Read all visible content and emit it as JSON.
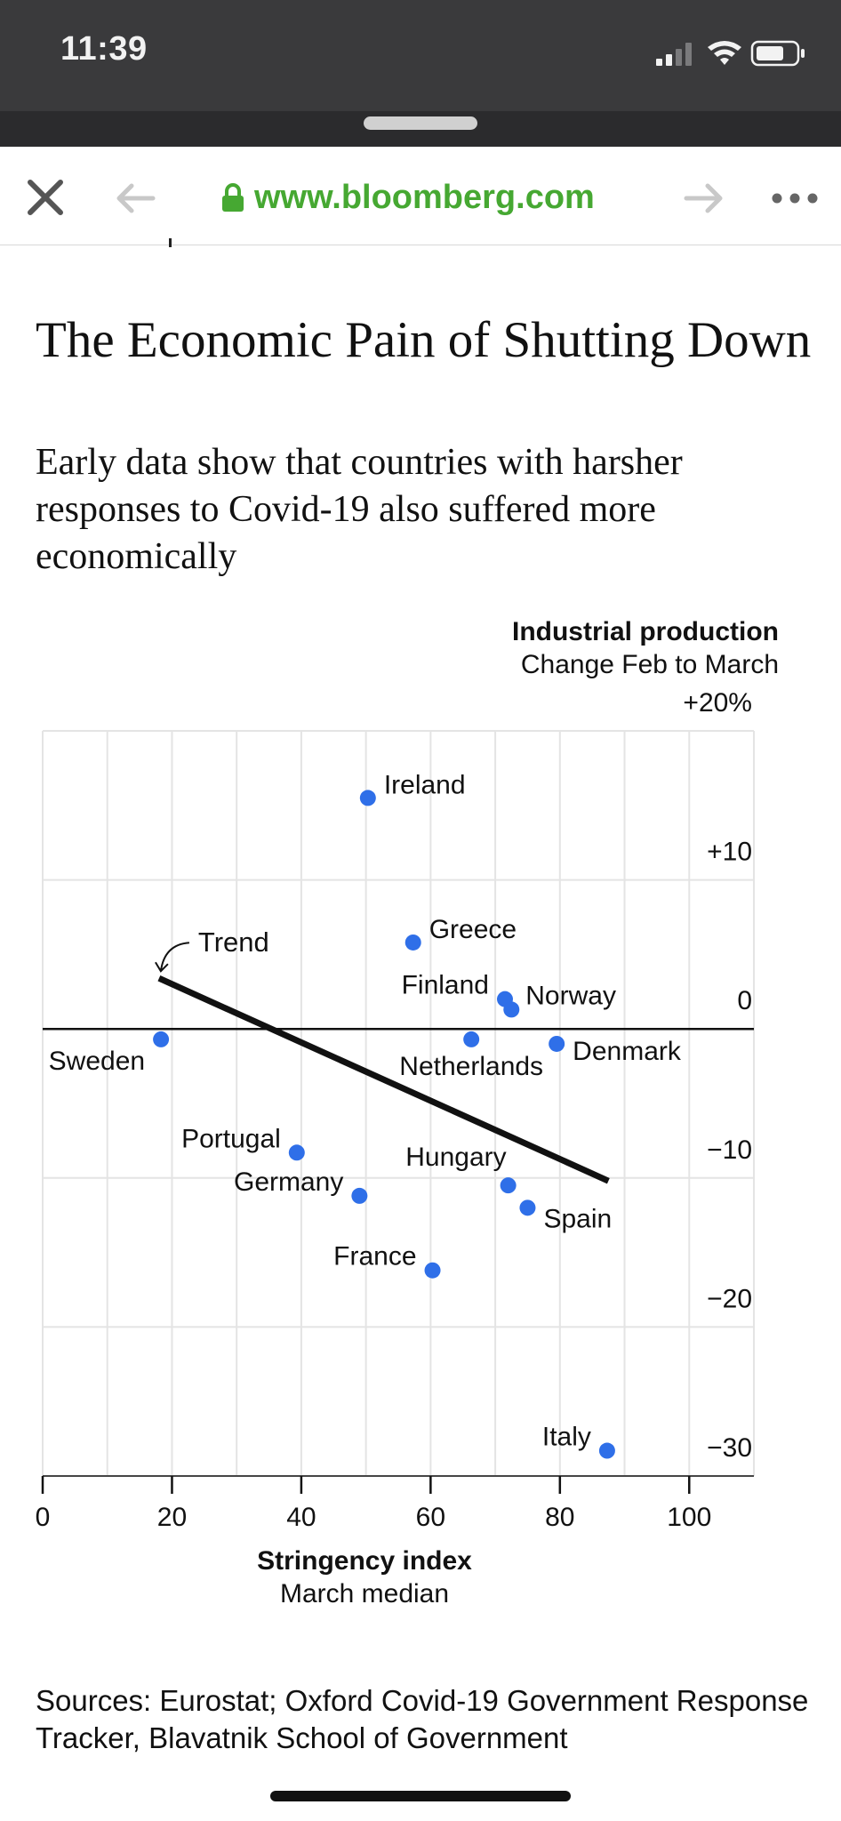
{
  "status_bar": {
    "time": "11:39"
  },
  "browser": {
    "url": "www.bloomberg.com"
  },
  "article": {
    "title": "The Economic Pain of Shutting Down",
    "subtitle": "Early data show that countries with harsher responses to Covid-19 also suffered more economically",
    "sources": "Sources: Eurostat; Oxford Covid-19 Government Response Tracker, Blavatnik School of Government"
  },
  "chart_data": {
    "type": "scatter",
    "title": "The Economic Pain of Shutting Down",
    "subtitle": "Early data show that countries with harsher responses to Covid-19 also suffered more economically",
    "ylabel": "Industrial production",
    "ylabel_sub": "Change Feb to March",
    "xlabel": "Stringency index",
    "xlabel_sub": "March median",
    "xlim": [
      0,
      110
    ],
    "ylim": [
      -30,
      20
    ],
    "x_ticks": [
      0,
      20,
      40,
      60,
      80,
      100
    ],
    "x_tick_labels": [
      "0",
      "20",
      "40",
      "60",
      "80",
      "100"
    ],
    "y_ticks": [
      20,
      10,
      0,
      -10,
      -20,
      -30
    ],
    "y_tick_labels": [
      "+20%",
      "+10",
      "0",
      "−10",
      "−20",
      "−30"
    ],
    "grid": true,
    "point_color": "#2f6fe8",
    "points": [
      {
        "label": "Ireland",
        "x": 50.3,
        "y": 15.5
      },
      {
        "label": "Greece",
        "x": 57.3,
        "y": 5.8
      },
      {
        "label": "Finland",
        "x": 71.5,
        "y": 2.0
      },
      {
        "label": "Norway",
        "x": 72.5,
        "y": 1.3
      },
      {
        "label": "Sweden",
        "x": 18.3,
        "y": -0.7
      },
      {
        "label": "Netherlands",
        "x": 66.3,
        "y": -0.7
      },
      {
        "label": "Denmark",
        "x": 79.5,
        "y": -1.0
      },
      {
        "label": "Portugal",
        "x": 39.3,
        "y": -8.3
      },
      {
        "label": "Germany",
        "x": 49.0,
        "y": -11.2
      },
      {
        "label": "Hungary",
        "x": 72.0,
        "y": -10.5
      },
      {
        "label": "Spain",
        "x": 75.0,
        "y": -12.0
      },
      {
        "label": "France",
        "x": 60.3,
        "y": -16.2
      },
      {
        "label": "Italy",
        "x": 87.3,
        "y": -28.3
      }
    ],
    "trend": {
      "label": "Trend",
      "x": [
        18,
        87.5
      ],
      "y": [
        3.4,
        -10.2
      ]
    }
  }
}
